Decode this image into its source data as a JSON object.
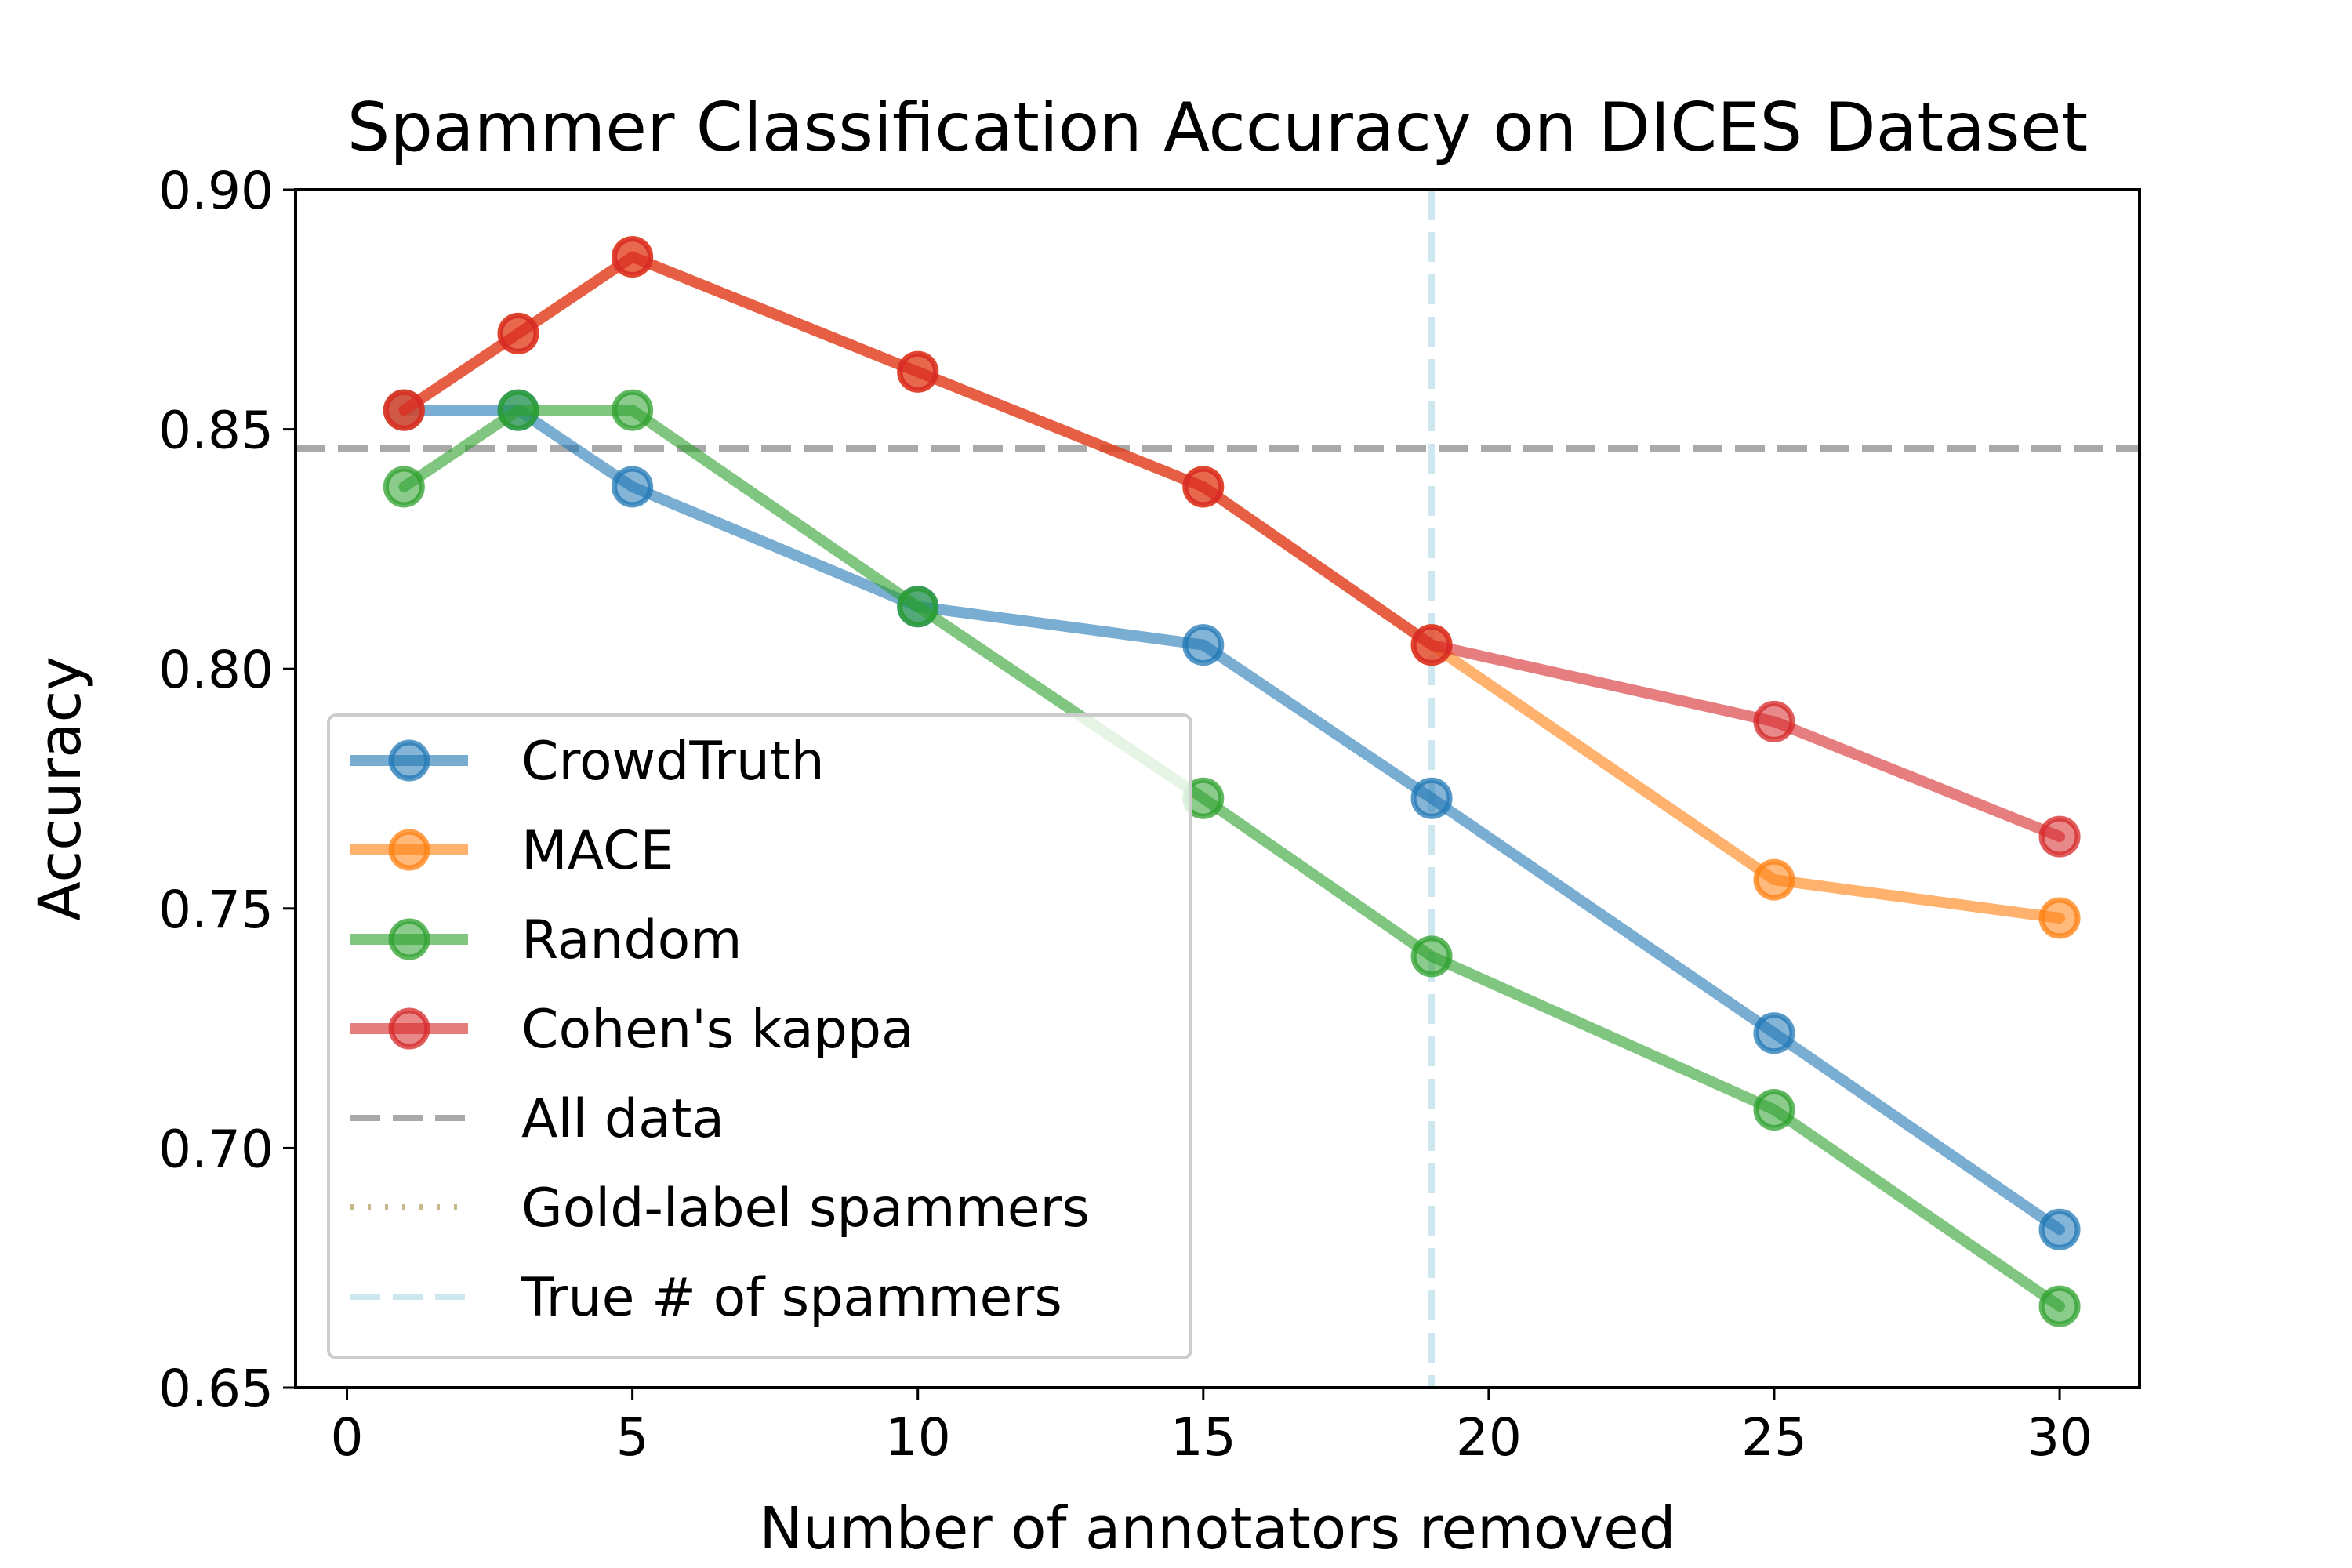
{
  "chart_data": {
    "type": "line",
    "title": "Spammer Classification Accuracy on DICES Dataset",
    "xlabel": "Number of annotators removed",
    "ylabel": "Accuracy",
    "xlim": [
      -0.9,
      31.4
    ],
    "ylim": [
      0.65,
      0.9
    ],
    "x_ticks": [
      0,
      5,
      10,
      15,
      20,
      25,
      30
    ],
    "x_tick_labels": [
      "0",
      "5",
      "10",
      "15",
      "20",
      "25",
      "30"
    ],
    "y_ticks": [
      0.65,
      0.7,
      0.75,
      0.8,
      0.85,
      0.9
    ],
    "y_tick_labels": [
      "0.65",
      "0.70",
      "0.75",
      "0.80",
      "0.85",
      "0.90"
    ],
    "grid": false,
    "legend_position": "lower-left",
    "series": [
      {
        "name": "CrowdTruth",
        "color": "#1f77b4",
        "x": [
          1,
          3,
          5,
          10,
          15,
          19,
          25,
          30
        ],
        "values": [
          0.854,
          0.854,
          0.838,
          0.813,
          0.805,
          0.773,
          0.724,
          0.683
        ]
      },
      {
        "name": "MACE",
        "color": "#ff7f0e",
        "x": [
          1,
          3,
          5,
          10,
          15,
          19,
          25,
          30
        ],
        "values": [
          0.854,
          0.87,
          0.886,
          0.862,
          0.838,
          0.805,
          0.756,
          0.748
        ]
      },
      {
        "name": "Random",
        "color": "#2ca02c",
        "x": [
          1,
          3,
          5,
          10,
          15,
          19,
          25,
          30
        ],
        "values": [
          0.838,
          0.854,
          0.854,
          0.813,
          0.773,
          0.74,
          0.708,
          0.667
        ]
      },
      {
        "name": "Cohen's kappa",
        "color": "#d62728",
        "x": [
          1,
          3,
          5,
          10,
          15,
          19,
          25,
          30
        ],
        "values": [
          0.854,
          0.87,
          0.886,
          0.862,
          0.838,
          0.805,
          0.789,
          0.765
        ]
      }
    ],
    "reference_lines": [
      {
        "name": "All data",
        "orientation": "horizontal",
        "value": 0.846,
        "color": "#a9a9a9",
        "style": "dashed"
      },
      {
        "name": "Gold-label spammers",
        "orientation": "vertical",
        "value": null,
        "color": "#c8b98a",
        "style": "dotted"
      },
      {
        "name": "True # of spammers",
        "orientation": "vertical",
        "value": 19,
        "color": "#add8e6",
        "style": "dashed"
      }
    ],
    "legend": [
      "CrowdTruth",
      "MACE",
      "Random",
      "Cohen's kappa",
      "All data",
      "Gold-label spammers",
      "True # of spammers"
    ]
  }
}
